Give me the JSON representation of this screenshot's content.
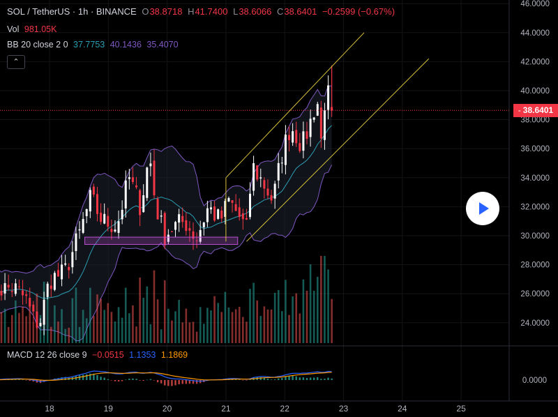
{
  "header": {
    "symbol": "SOL / TetherUS · 1h · BINANCE",
    "o_key": "O",
    "o": "38.8718",
    "h_key": "H",
    "h": "41.7400",
    "l_key": "L",
    "l": "38.6066",
    "c_key": "C",
    "c": "38.6401",
    "change": "−0.2599 (−0.67%)",
    "vol_label": "Vol",
    "vol_value": "981.05K",
    "bb_label": "BB 20 close 2 0",
    "bb_basis": "37.7753",
    "bb_upper": "40.1436",
    "bb_lower": "35.4070",
    "macd_label": "MACD 12 26 close 9",
    "macd_hist": "−0.0515",
    "macd_line": "1.1353",
    "macd_signal": "1.1869",
    "collapse_icon": "chevron-up-icon"
  },
  "last_price_tag": "38.6401",
  "colors": {
    "up": "#ffffff",
    "down": "#f23645",
    "bb_basis": "#2a9fb4",
    "bb_band": "#7e57c2",
    "channel": "#d9c23a",
    "zone": "#c04fd6",
    "macd_line": "#2962ff",
    "signal_line": "#ff9800",
    "vol_up": "#26a69a",
    "vol_down": "#ef5350"
  },
  "chart_data": {
    "type": "candlestick",
    "title": "SOL / TetherUS · 1h · BINANCE",
    "price_axis": {
      "ticks": [
        "24.0000",
        "26.0000",
        "28.0000",
        "30.0000",
        "32.0000",
        "34.0000",
        "36.0000",
        "38.0000",
        "40.0000",
        "42.0000",
        "44.0000",
        "46.0000"
      ],
      "range": [
        22.6,
        46.0
      ]
    },
    "x_axis": {
      "ticks": [
        "18",
        "19",
        "20",
        "21",
        "22",
        "23",
        "24",
        "25"
      ]
    },
    "macd_axis": {
      "ticks": [
        "0.0000"
      ]
    },
    "price_path_day_close": [
      {
        "day": 17.0,
        "close": 26.3
      },
      {
        "day": 17.4,
        "close": 26.4
      },
      {
        "day": 17.6,
        "close": 25.6
      },
      {
        "day": 17.75,
        "close": 24.0
      },
      {
        "day": 17.85,
        "close": 24.2
      },
      {
        "day": 18.0,
        "close": 27.0
      },
      {
        "day": 18.25,
        "close": 27.4
      },
      {
        "day": 18.5,
        "close": 30.0
      },
      {
        "day": 18.7,
        "close": 32.6
      },
      {
        "day": 18.9,
        "close": 31.0
      },
      {
        "day": 19.15,
        "close": 30.7
      },
      {
        "day": 19.35,
        "close": 34.0
      },
      {
        "day": 19.55,
        "close": 32.0
      },
      {
        "day": 19.7,
        "close": 35.6
      },
      {
        "day": 19.8,
        "close": 32.2
      },
      {
        "day": 19.95,
        "close": 30.0
      },
      {
        "day": 20.1,
        "close": 30.6
      },
      {
        "day": 20.3,
        "close": 31.0
      },
      {
        "day": 20.5,
        "close": 29.8
      },
      {
        "day": 20.7,
        "close": 32.0
      },
      {
        "day": 20.9,
        "close": 31.0
      },
      {
        "day": 21.05,
        "close": 32.4
      },
      {
        "day": 21.2,
        "close": 31.5
      },
      {
        "day": 21.35,
        "close": 30.4
      },
      {
        "day": 21.45,
        "close": 34.8
      },
      {
        "day": 21.65,
        "close": 33.5
      },
      {
        "day": 21.8,
        "close": 32.4
      },
      {
        "day": 21.95,
        "close": 35.6
      },
      {
        "day": 22.1,
        "close": 37.6
      },
      {
        "day": 22.3,
        "close": 36.2
      },
      {
        "day": 22.45,
        "close": 38.0
      },
      {
        "day": 22.55,
        "close": 39.5
      },
      {
        "day": 22.62,
        "close": 36.5
      },
      {
        "day": 22.7,
        "close": 40.2
      },
      {
        "day": 22.82,
        "close": 38.64
      }
    ],
    "last_price": 38.6401,
    "current_ohlc": {
      "open": 38.8718,
      "high": 41.74,
      "low": 38.6066,
      "close": 38.6401
    },
    "volume_last": "981.05K",
    "bollinger": {
      "length": 20,
      "basis": 37.7753,
      "upper": 40.1436,
      "lower": 35.407
    },
    "macd": {
      "fast": 12,
      "slow": 26,
      "signal": 9,
      "histogram": -0.0515,
      "macd": 1.1353,
      "signal_value": 1.1869
    },
    "drawings": {
      "channel_lower_line": [
        {
          "day": 21.35,
          "price": 29.6
        },
        {
          "day": 24.45,
          "price": 42.2
        }
      ],
      "channel_upper_line": [
        {
          "day": 21.0,
          "price": 34.0
        },
        {
          "day": 23.35,
          "price": 44.0
        }
      ],
      "channel_left_edge": [
        {
          "day": 21.0,
          "price": 29.6
        },
        {
          "day": 21.0,
          "price": 34.0
        }
      ],
      "support_zone": {
        "day_from": 18.6,
        "day_to": 21.2,
        "price_low": 29.4,
        "price_high": 29.9
      }
    }
  }
}
